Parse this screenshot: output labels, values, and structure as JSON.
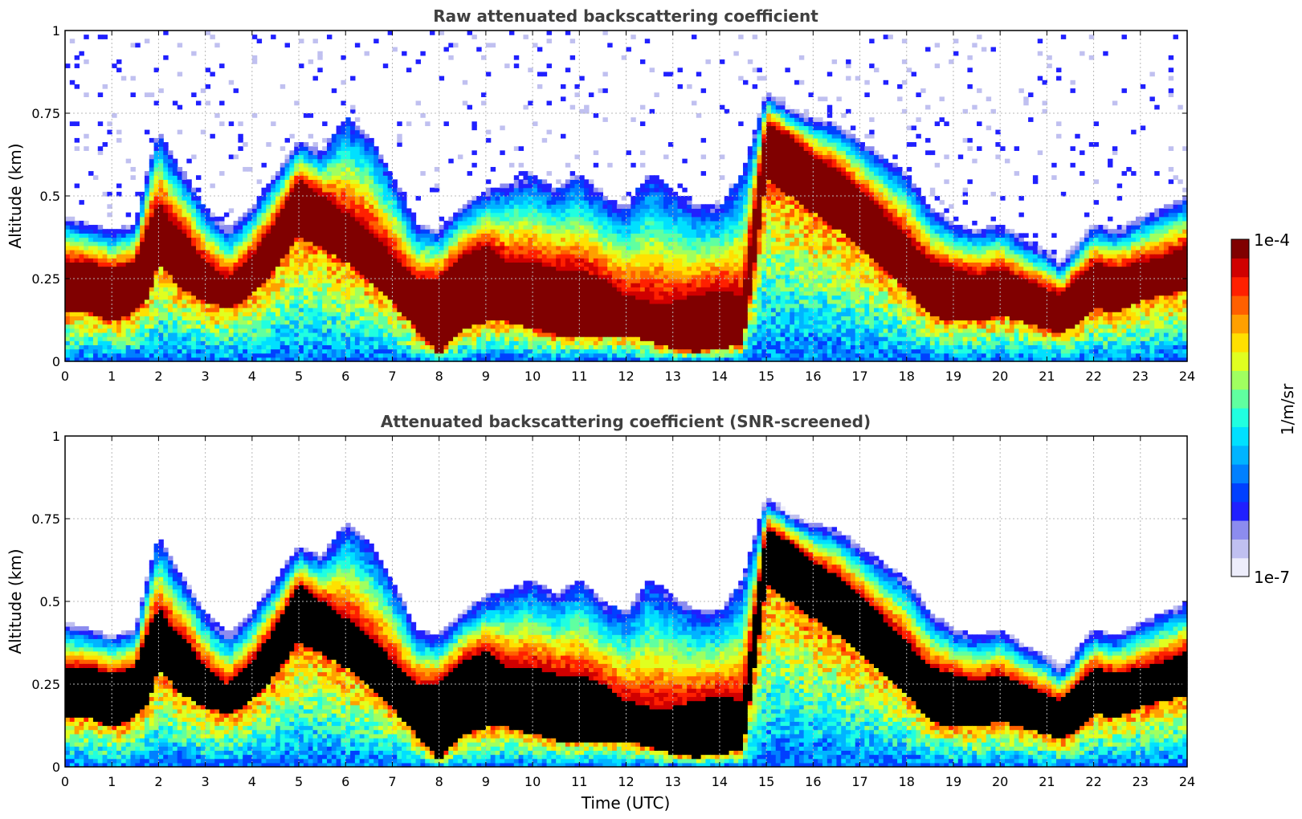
{
  "chart_data": [
    {
      "type": "heatmap",
      "title": "Raw attenuated backscattering coefficient",
      "xlabel": "",
      "ylabel": "Altitude (km)",
      "xlim": [
        0,
        24
      ],
      "ylim": [
        0,
        1
      ],
      "xticks": [
        "0",
        "1",
        "2",
        "3",
        "4",
        "5",
        "6",
        "7",
        "8",
        "9",
        "10",
        "11",
        "12",
        "13",
        "14",
        "15",
        "16",
        "17",
        "18",
        "19",
        "20",
        "21",
        "22",
        "23",
        "24"
      ],
      "yticks": [
        "0",
        "0.25",
        "0.5",
        "0.75",
        "1"
      ],
      "ytick_values": [
        0,
        0.25,
        0.5,
        0.75,
        1
      ],
      "grid": true,
      "screened": false,
      "layer_top": {
        "x": [
          0,
          0.5,
          1,
          1.5,
          1.8,
          2,
          2.3,
          2.5,
          3,
          3.5,
          4,
          4.5,
          5,
          5.5,
          6,
          6.5,
          7,
          7.5,
          8,
          8.5,
          9,
          9.5,
          10,
          10.5,
          11,
          11.5,
          12,
          12.5,
          13,
          13.5,
          14,
          14.5,
          15,
          15.5,
          16,
          16.5,
          17,
          17.5,
          18,
          18.5,
          19,
          19.5,
          20,
          20.5,
          21,
          21.3,
          21.7,
          22,
          22.5,
          23,
          23.5,
          24
        ],
        "y": [
          0.42,
          0.4,
          0.38,
          0.4,
          0.58,
          0.68,
          0.6,
          0.56,
          0.45,
          0.38,
          0.45,
          0.55,
          0.65,
          0.62,
          0.72,
          0.66,
          0.55,
          0.4,
          0.38,
          0.45,
          0.5,
          0.52,
          0.55,
          0.5,
          0.55,
          0.48,
          0.45,
          0.55,
          0.5,
          0.45,
          0.45,
          0.55,
          0.8,
          0.75,
          0.72,
          0.7,
          0.65,
          0.6,
          0.55,
          0.45,
          0.4,
          0.38,
          0.4,
          0.35,
          0.32,
          0.28,
          0.35,
          0.4,
          0.38,
          0.42,
          0.45,
          0.48
        ]
      },
      "dense_layer": {
        "x": [
          0,
          0.5,
          1,
          1.5,
          1.8,
          2,
          2.3,
          2.5,
          3,
          3.5,
          4,
          4.5,
          5,
          5.5,
          6,
          6.5,
          7,
          7.5,
          8,
          8.5,
          9,
          9.5,
          10,
          10.5,
          11,
          11.5,
          12,
          12.5,
          13,
          13.5,
          14,
          14.5,
          15,
          15.5,
          16,
          16.5,
          17,
          17.5,
          18,
          18.5,
          19,
          19.5,
          20,
          20.5,
          21,
          21.3,
          21.7,
          22,
          22.5,
          23,
          23.5,
          24
        ],
        "top": [
          0.3,
          0.3,
          0.28,
          0.3,
          0.42,
          0.48,
          0.42,
          0.4,
          0.3,
          0.25,
          0.32,
          0.42,
          0.55,
          0.5,
          0.45,
          0.4,
          0.32,
          0.25,
          0.25,
          0.32,
          0.35,
          0.3,
          0.3,
          0.28,
          0.28,
          0.25,
          0.2,
          0.18,
          0.18,
          0.2,
          0.22,
          0.2,
          0.72,
          0.68,
          0.62,
          0.58,
          0.52,
          0.45,
          0.38,
          0.3,
          0.28,
          0.26,
          0.28,
          0.25,
          0.22,
          0.2,
          0.26,
          0.3,
          0.28,
          0.3,
          0.32,
          0.35
        ],
        "bottom": [
          0.15,
          0.15,
          0.12,
          0.15,
          0.2,
          0.3,
          0.25,
          0.22,
          0.18,
          0.16,
          0.2,
          0.28,
          0.38,
          0.34,
          0.3,
          0.25,
          0.18,
          0.1,
          0.02,
          0.1,
          0.12,
          0.12,
          0.1,
          0.08,
          0.08,
          0.08,
          0.08,
          0.06,
          0.04,
          0.03,
          0.04,
          0.05,
          0.55,
          0.5,
          0.45,
          0.4,
          0.35,
          0.28,
          0.22,
          0.14,
          0.12,
          0.12,
          0.14,
          0.12,
          0.1,
          0.08,
          0.12,
          0.16,
          0.15,
          0.18,
          0.2,
          0.22
        ]
      }
    },
    {
      "type": "heatmap",
      "title": "Attenuated backscattering coefficient (SNR-screened)",
      "xlabel": "Time (UTC)",
      "ylabel": "Altitude (km)",
      "xlim": [
        0,
        24
      ],
      "ylim": [
        0,
        1
      ],
      "xticks": [
        "0",
        "1",
        "2",
        "3",
        "4",
        "5",
        "6",
        "7",
        "8",
        "9",
        "10",
        "11",
        "12",
        "13",
        "14",
        "15",
        "16",
        "17",
        "18",
        "19",
        "20",
        "21",
        "22",
        "23",
        "24"
      ],
      "yticks": [
        "0",
        "0.25",
        "0.5",
        "0.75",
        "1"
      ],
      "ytick_values": [
        0,
        0.25,
        0.5,
        0.75,
        1
      ],
      "grid": true,
      "screened": true,
      "layer_top": {
        "x": [
          0,
          0.5,
          1,
          1.5,
          1.8,
          2,
          2.3,
          2.5,
          3,
          3.5,
          4,
          4.5,
          5,
          5.5,
          6,
          6.5,
          7,
          7.5,
          8,
          8.5,
          9,
          9.5,
          10,
          10.5,
          11,
          11.5,
          12,
          12.5,
          13,
          13.5,
          14,
          14.5,
          15,
          15.5,
          16,
          16.5,
          17,
          17.5,
          18,
          18.5,
          19,
          19.5,
          20,
          20.5,
          21,
          21.3,
          21.7,
          22,
          22.5,
          23,
          23.5,
          24
        ],
        "y": [
          0.42,
          0.4,
          0.38,
          0.4,
          0.58,
          0.68,
          0.6,
          0.56,
          0.45,
          0.38,
          0.45,
          0.55,
          0.65,
          0.62,
          0.72,
          0.66,
          0.55,
          0.4,
          0.38,
          0.45,
          0.5,
          0.52,
          0.55,
          0.5,
          0.55,
          0.48,
          0.45,
          0.55,
          0.5,
          0.45,
          0.45,
          0.55,
          0.8,
          0.75,
          0.72,
          0.7,
          0.65,
          0.6,
          0.55,
          0.45,
          0.4,
          0.38,
          0.4,
          0.35,
          0.32,
          0.28,
          0.35,
          0.4,
          0.38,
          0.42,
          0.45,
          0.48
        ]
      },
      "dense_layer": {
        "x": [
          0,
          0.5,
          1,
          1.5,
          1.8,
          2,
          2.3,
          2.5,
          3,
          3.5,
          4,
          4.5,
          5,
          5.5,
          6,
          6.5,
          7,
          7.5,
          8,
          8.5,
          9,
          9.5,
          10,
          10.5,
          11,
          11.5,
          12,
          12.5,
          13,
          13.5,
          14,
          14.5,
          15,
          15.5,
          16,
          16.5,
          17,
          17.5,
          18,
          18.5,
          19,
          19.5,
          20,
          20.5,
          21,
          21.3,
          21.7,
          22,
          22.5,
          23,
          23.5,
          24
        ],
        "top": [
          0.3,
          0.3,
          0.28,
          0.3,
          0.42,
          0.48,
          0.42,
          0.4,
          0.3,
          0.25,
          0.32,
          0.42,
          0.55,
          0.5,
          0.45,
          0.4,
          0.32,
          0.25,
          0.25,
          0.32,
          0.35,
          0.3,
          0.3,
          0.28,
          0.28,
          0.25,
          0.2,
          0.18,
          0.18,
          0.2,
          0.22,
          0.2,
          0.72,
          0.68,
          0.62,
          0.58,
          0.52,
          0.45,
          0.38,
          0.3,
          0.28,
          0.26,
          0.28,
          0.25,
          0.22,
          0.2,
          0.26,
          0.3,
          0.28,
          0.3,
          0.32,
          0.35
        ],
        "bottom": [
          0.15,
          0.15,
          0.12,
          0.15,
          0.2,
          0.3,
          0.25,
          0.22,
          0.18,
          0.16,
          0.2,
          0.28,
          0.38,
          0.34,
          0.3,
          0.25,
          0.18,
          0.1,
          0.02,
          0.1,
          0.12,
          0.12,
          0.1,
          0.08,
          0.08,
          0.08,
          0.08,
          0.06,
          0.04,
          0.03,
          0.04,
          0.05,
          0.55,
          0.5,
          0.45,
          0.4,
          0.35,
          0.28,
          0.22,
          0.14,
          0.12,
          0.12,
          0.14,
          0.12,
          0.1,
          0.08,
          0.12,
          0.16,
          0.15,
          0.18,
          0.2,
          0.22
        ]
      }
    }
  ],
  "colorbar": {
    "label": "1/m/sr",
    "max_label": "1e-4",
    "min_label": "1e-7",
    "colors": [
      "#ededfb",
      "#c0c0f0",
      "#8c8cef",
      "#2020ff",
      "#0040ff",
      "#0080ff",
      "#00b4ff",
      "#00e0ff",
      "#20ffe0",
      "#60ffa0",
      "#a0ff60",
      "#e0ff20",
      "#ffe000",
      "#ffa000",
      "#ff6000",
      "#ff2000",
      "#d00000",
      "#800000"
    ]
  }
}
